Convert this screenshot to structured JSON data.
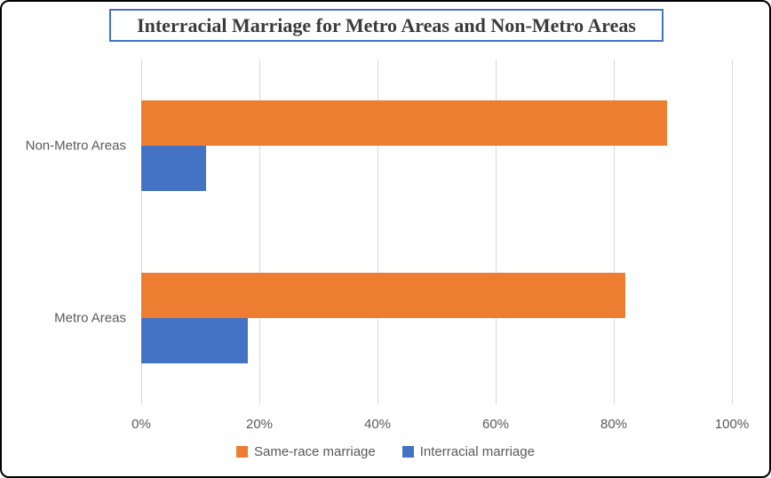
{
  "title": "Interracial Marriage for Metro Areas and Non-Metro Areas",
  "chart_data": {
    "type": "bar",
    "orientation": "horizontal",
    "title": "Interracial Marriage for Metro Areas and Non-Metro Areas",
    "categories": [
      "Non-Metro Areas",
      "Metro Areas"
    ],
    "series": [
      {
        "name": "Same-race marriage",
        "color": "#ED7D31",
        "values": [
          89,
          82
        ]
      },
      {
        "name": "Interracial marriage",
        "color": "#4472C4",
        "values": [
          11,
          18
        ]
      }
    ],
    "x_axis": {
      "range": [
        0,
        100
      ],
      "tick_values": [
        0,
        20,
        40,
        60,
        80,
        100
      ],
      "tick_labels": [
        "0%",
        "20%",
        "40%",
        "60%",
        "80%",
        "100%"
      ],
      "unit": "%"
    },
    "grid": "vertical",
    "legend_position": "bottom"
  },
  "colors": {
    "frame_border": "#000000",
    "title_border": "#4472C4",
    "title_text": "#3B3B3B",
    "gridline": "#D9D9D9",
    "axis_text": "#595959",
    "series_same_race": "#ED7D31",
    "series_interracial": "#4472C4"
  }
}
